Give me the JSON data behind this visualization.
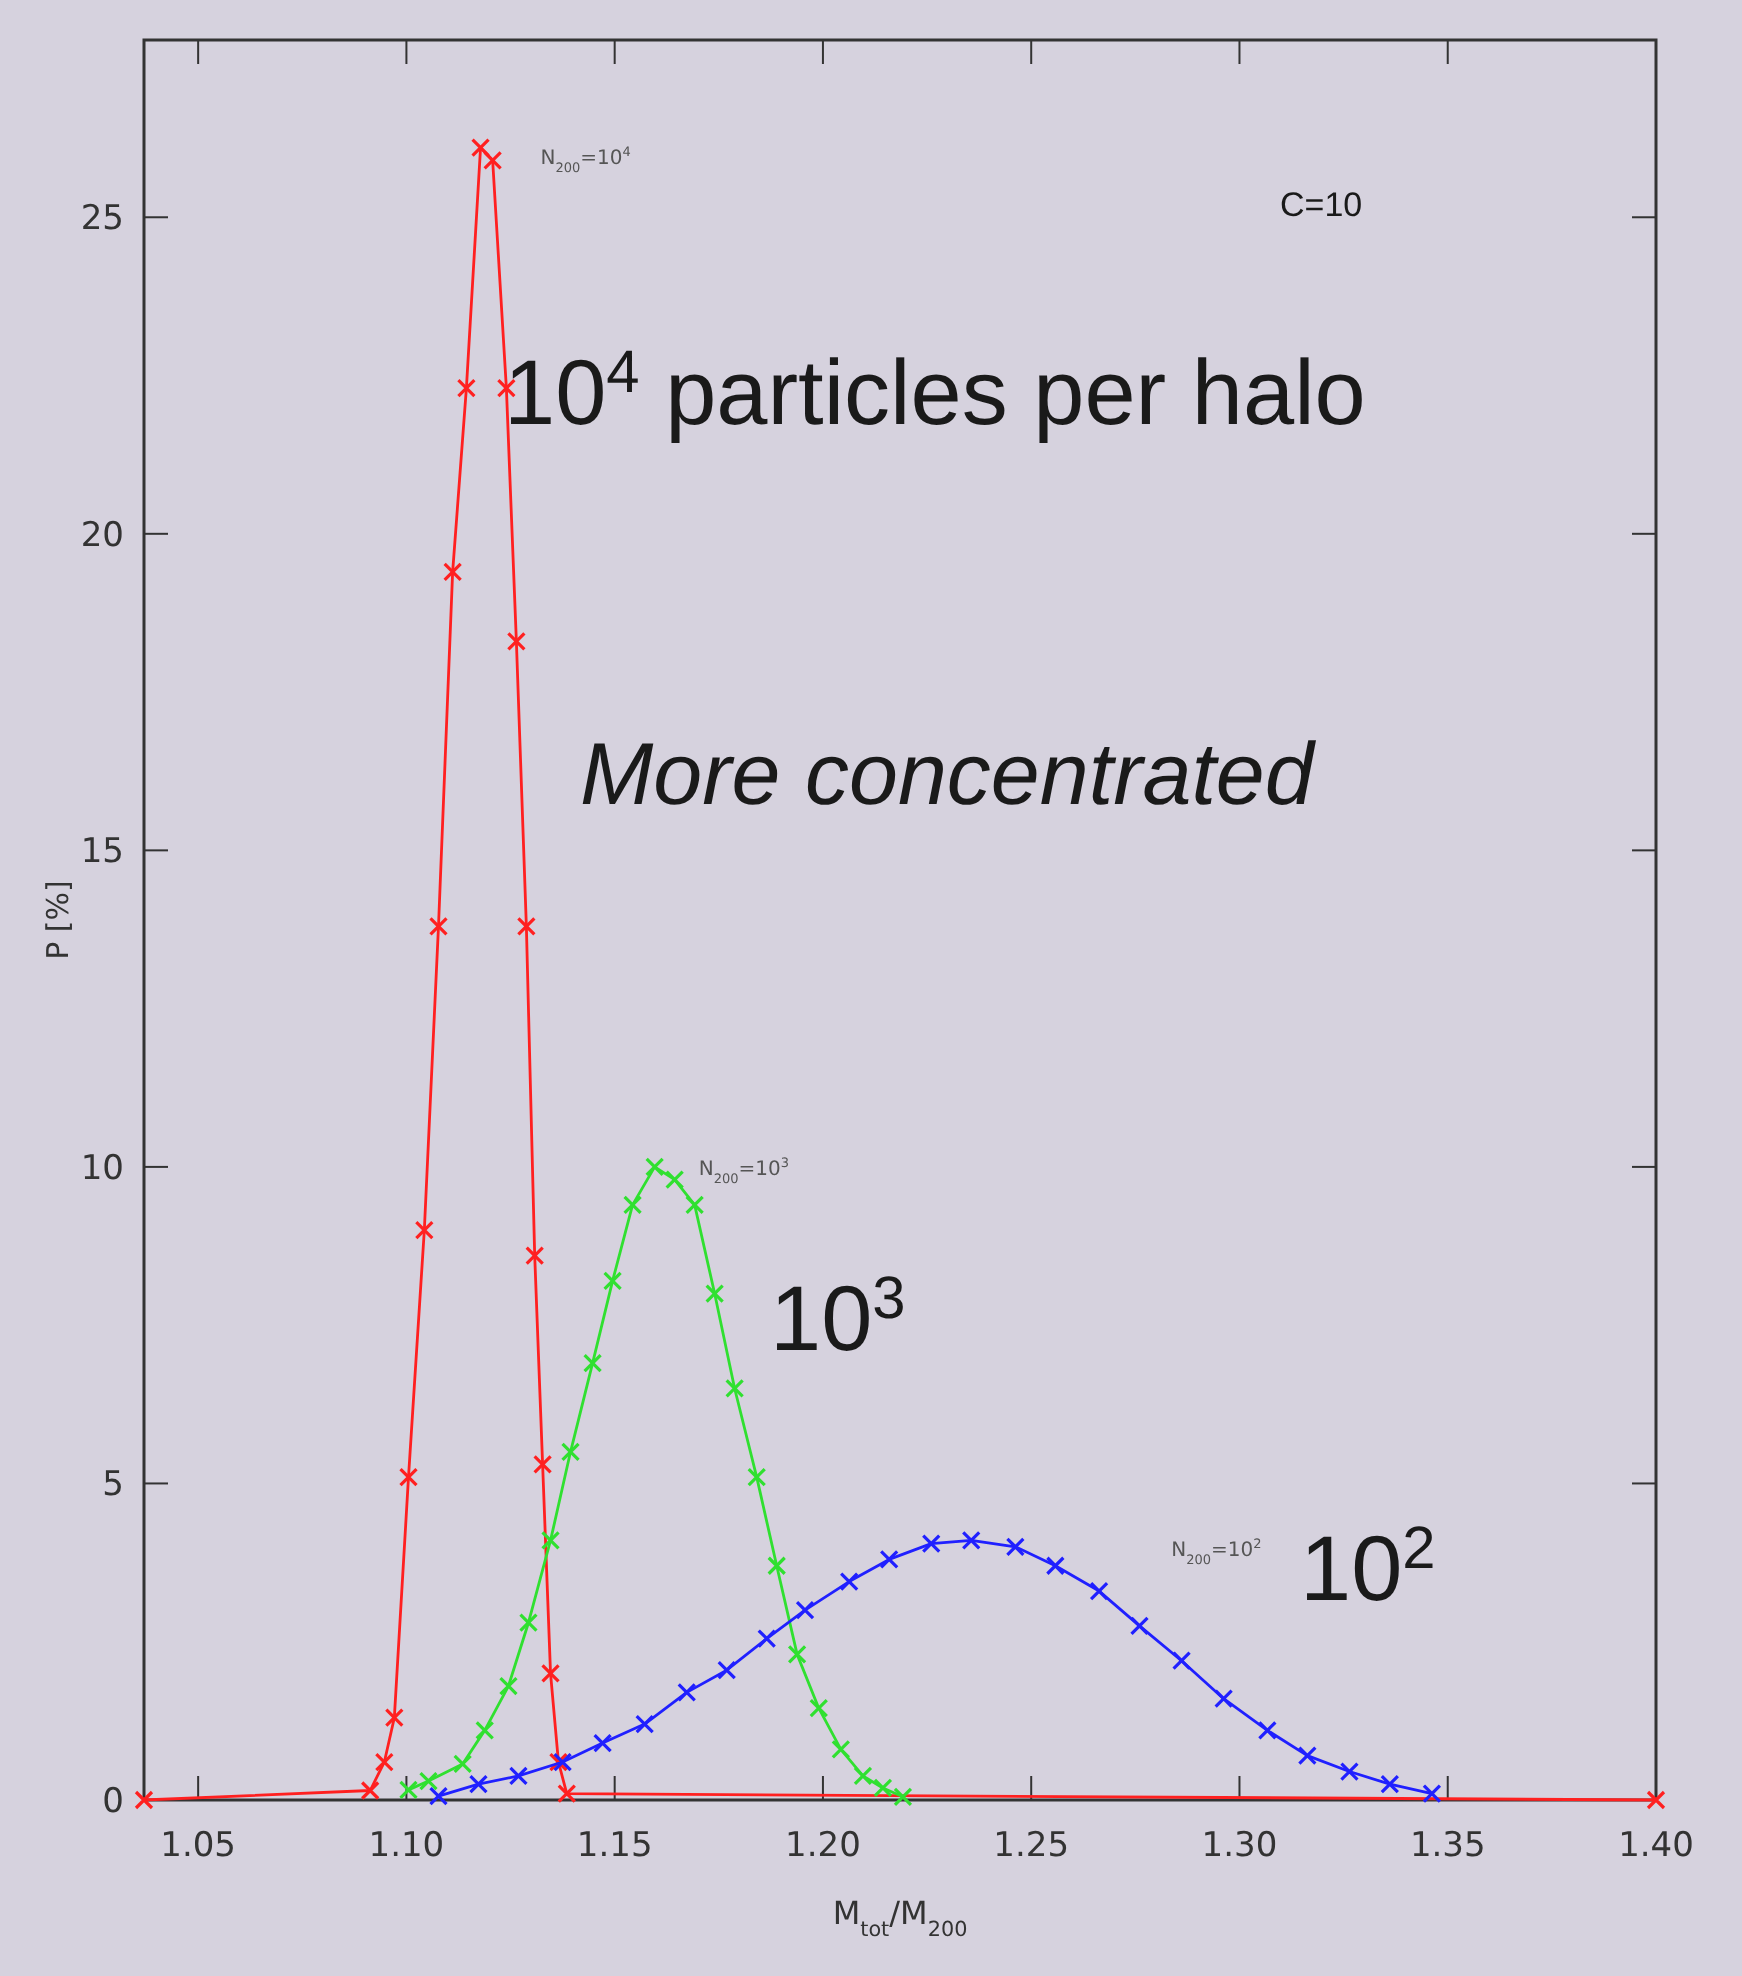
{
  "chart_data": {
    "type": "line",
    "xlabel": "M$_{tot}$/M$_{200}$",
    "ylabel": "P [%]",
    "xlim": [
      1.037,
      1.4
    ],
    "ylim": [
      0,
      27.8
    ],
    "xticks": [
      {
        "value": 1.05,
        "label": "1.05"
      },
      {
        "value": 1.1,
        "label": "1.10"
      },
      {
        "value": 1.15,
        "label": "1.15"
      },
      {
        "value": 1.2,
        "label": "1.20"
      },
      {
        "value": 1.25,
        "label": "1.25"
      },
      {
        "value": 1.3,
        "label": "1.30"
      },
      {
        "value": 1.35,
        "label": "1.35"
      },
      {
        "value": 1.4,
        "label": "1.40"
      }
    ],
    "yticks": [
      0,
      5,
      10,
      15,
      20,
      25
    ],
    "marker": "cross",
    "line_style": "solid",
    "grid": false,
    "series": [
      {
        "name": "N$_{200}$=10$^{4}$",
        "color": "#ff2020",
        "x": [
          1.037,
          1.0913,
          1.0947,
          1.0971,
          1.1005,
          1.1043,
          1.1077,
          1.1111,
          1.1144,
          1.1178,
          1.1207,
          1.124,
          1.1264,
          1.1288,
          1.1308,
          1.1327,
          1.1346,
          1.1365,
          1.1385,
          1.4
        ],
        "values": [
          0,
          0.15,
          0.6,
          1.3,
          5.1,
          9.0,
          13.8,
          19.4,
          22.3,
          26.1,
          25.9,
          22.3,
          18.3,
          13.8,
          8.6,
          5.3,
          2.0,
          0.6,
          0.1,
          0
        ]
      },
      {
        "name": "N$_{200}$=10$^{3}$",
        "color": "#30e030",
        "x": [
          1.1005,
          1.1053,
          1.1135,
          1.1188,
          1.1245,
          1.1293,
          1.1346,
          1.1394,
          1.1447,
          1.1495,
          1.1543,
          1.1596,
          1.1644,
          1.1692,
          1.174,
          1.1788,
          1.1841,
          1.1889,
          1.1938,
          1.199,
          1.2043,
          1.2096,
          1.2144,
          1.2192
        ],
        "values": [
          0.16,
          0.3,
          0.57,
          1.1,
          1.8,
          2.8,
          4.1,
          5.5,
          6.9,
          8.2,
          9.4,
          10.0,
          9.8,
          9.4,
          8.0,
          6.5,
          5.1,
          3.7,
          2.3,
          1.45,
          0.8,
          0.38,
          0.19,
          0.05
        ]
      },
      {
        "name": "N$_{200}$=10$^{2}$",
        "color": "#2020ff",
        "x": [
          1.1077,
          1.1173,
          1.1269,
          1.1375,
          1.1471,
          1.1572,
          1.1673,
          1.1769,
          1.1865,
          1.1957,
          1.2063,
          1.2159,
          1.226,
          1.2356,
          1.2462,
          1.2558,
          1.2663,
          1.276,
          1.2861,
          1.2962,
          1.3067,
          1.3163,
          1.3264,
          1.3361,
          1.3462
        ],
        "values": [
          0.06,
          0.25,
          0.38,
          0.6,
          0.9,
          1.2,
          1.7,
          2.05,
          2.55,
          3.0,
          3.45,
          3.8,
          4.05,
          4.1,
          4.0,
          3.7,
          3.3,
          2.75,
          2.2,
          1.6,
          1.1,
          0.7,
          0.45,
          0.25,
          0.1
        ]
      }
    ],
    "annotations": [
      "C=10",
      "10$^{4}$ particles per halo",
      "More concentrated",
      "10$^{3}$",
      "10$^{2}$"
    ]
  }
}
